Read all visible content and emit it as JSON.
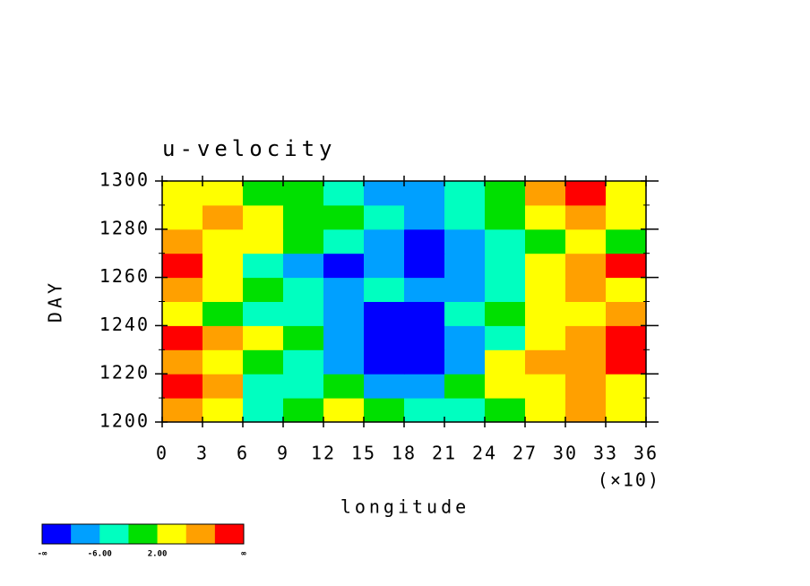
{
  "chart_data": {
    "type": "heatmap",
    "title": "u-velocity",
    "xlabel": "longitude",
    "ylabel": "DAY",
    "x_multiplier": "(×10)",
    "xlim": [
      0,
      36
    ],
    "xticks": [
      0,
      3,
      6,
      9,
      12,
      15,
      18,
      21,
      24,
      27,
      30,
      33,
      36
    ],
    "ylim": [
      1200,
      1300
    ],
    "yticks": [
      1200,
      1220,
      1240,
      1260,
      1280,
      1300
    ],
    "xbins": [
      0,
      3,
      6,
      9,
      12,
      15,
      18,
      21,
      24,
      27,
      30,
      33,
      36
    ],
    "ybins": [
      1200,
      1210,
      1220,
      1230,
      1240,
      1250,
      1260,
      1270,
      1280,
      1290,
      1300
    ],
    "z": [
      [
        8,
        4,
        -4,
        0,
        4,
        0,
        -4,
        -4,
        0,
        4,
        8,
        4
      ],
      [
        12,
        8,
        -4,
        -4,
        0,
        -8,
        -8,
        0,
        4,
        4,
        8,
        4
      ],
      [
        8,
        4,
        0,
        -4,
        -8,
        -12,
        -12,
        -8,
        4,
        8,
        8,
        12
      ],
      [
        12,
        8,
        4,
        0,
        -8,
        -12,
        -12,
        -8,
        -4,
        4,
        8,
        12
      ],
      [
        4,
        0,
        -4,
        -4,
        -8,
        -12,
        -12,
        -4,
        0,
        4,
        4,
        8
      ],
      [
        8,
        4,
        0,
        -4,
        -8,
        -4,
        -8,
        -8,
        -4,
        4,
        8,
        4
      ],
      [
        12,
        4,
        -4,
        -8,
        -12,
        -8,
        -12,
        -8,
        -4,
        4,
        8,
        12
      ],
      [
        8,
        4,
        4,
        0,
        -4,
        -8,
        -12,
        -8,
        -4,
        0,
        4,
        0
      ],
      [
        4,
        8,
        4,
        0,
        0,
        -4,
        -8,
        -4,
        0,
        4,
        8,
        4
      ],
      [
        4,
        4,
        0,
        0,
        -4,
        -8,
        -8,
        -4,
        0,
        8,
        12,
        4
      ]
    ],
    "colorbar": {
      "colors": [
        "#0000ff",
        "#00a0ff",
        "#00ffc0",
        "#00e000",
        "#ffff00",
        "#ffa000",
        "#ff0000"
      ],
      "levels": [
        -10,
        -6,
        -2,
        2,
        6,
        10
      ],
      "low_label": "-∞",
      "high_label": "∞",
      "ticks": [
        {
          "value": -6,
          "label": "-6.00"
        },
        {
          "value": 2,
          "label": "2.00"
        }
      ]
    }
  }
}
